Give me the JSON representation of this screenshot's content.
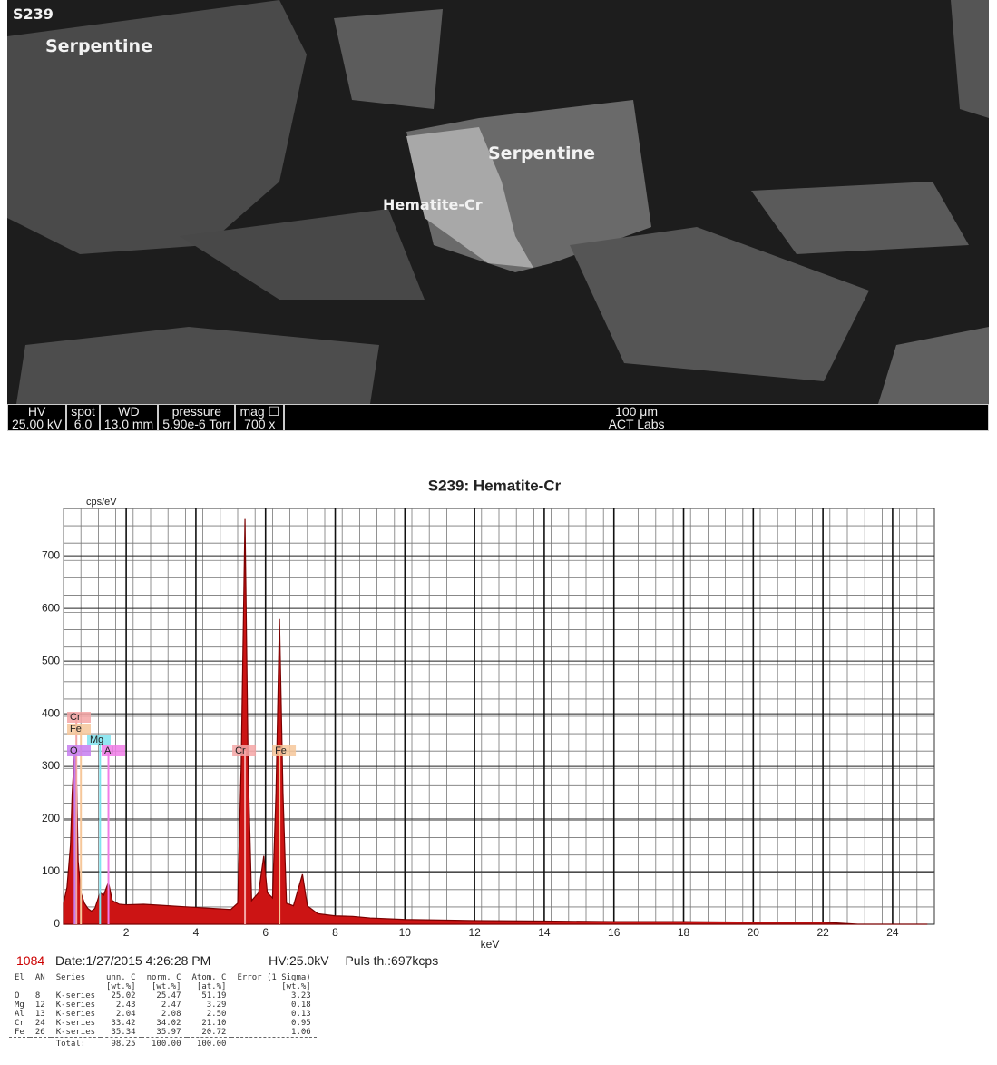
{
  "image": {
    "sample_id": "S239",
    "labels": [
      "Serpentine",
      "Serpentine",
      "Hematite-Cr"
    ],
    "info_bar": [
      {
        "name": "HV",
        "value": "25.00 kV"
      },
      {
        "name": "spot",
        "value": "6.0"
      },
      {
        "name": "WD",
        "value": "13.0 mm"
      },
      {
        "name": "pressure",
        "value": "5.90e-6 Torr"
      },
      {
        "name": "mag ☐",
        "value": "700 x"
      }
    ],
    "scale_bar": "100 μm",
    "lab": "ACT Labs"
  },
  "chart_data": {
    "type": "area",
    "title": "S239: Hematite-Cr",
    "y_label": "cps/eV",
    "x_label": "keV",
    "xlim": [
      0.2,
      25.2
    ],
    "ylim": [
      0,
      790
    ],
    "xticks": [
      2,
      4,
      6,
      8,
      10,
      12,
      14,
      16,
      18,
      20,
      22,
      24
    ],
    "yticks": [
      0,
      100,
      200,
      300,
      400,
      500,
      600,
      700
    ],
    "grid": true,
    "series": [
      {
        "color": "#cc1414",
        "x": [
          0.2,
          0.3,
          0.4,
          0.45,
          0.52,
          0.58,
          0.62,
          0.7,
          0.8,
          0.9,
          1.0,
          1.1,
          1.25,
          1.35,
          1.49,
          1.6,
          1.8,
          2.0,
          2.5,
          3.0,
          3.5,
          4.0,
          4.5,
          5.0,
          5.2,
          5.3,
          5.41,
          5.5,
          5.6,
          5.8,
          5.95,
          6.05,
          6.2,
          6.3,
          6.4,
          6.5,
          6.6,
          6.8,
          7.06,
          7.2,
          7.5,
          8.0,
          8.5,
          9.0,
          10,
          12,
          14,
          16,
          18,
          20,
          22,
          22.5,
          23,
          25
        ],
        "values": [
          40,
          70,
          150,
          250,
          330,
          260,
          120,
          60,
          40,
          30,
          25,
          30,
          60,
          55,
          80,
          45,
          38,
          37,
          38,
          36,
          34,
          32,
          30,
          28,
          40,
          300,
          770,
          300,
          45,
          60,
          130,
          60,
          50,
          250,
          580,
          250,
          40,
          35,
          95,
          35,
          20,
          16,
          15,
          12,
          9,
          7,
          6,
          5,
          5,
          4,
          4,
          2,
          0,
          0
        ]
      }
    ],
    "peak_labels": [
      {
        "label": "Cr",
        "x": 0.57,
        "color": "#f4a6a6"
      },
      {
        "label": "Fe",
        "x": 0.7,
        "color": "#f6c79a"
      },
      {
        "label": "Mg",
        "x": 1.25,
        "color": "#7fe3ee"
      },
      {
        "label": "O",
        "x": 0.52,
        "color": "#c77df0"
      },
      {
        "label": "Al",
        "x": 1.49,
        "color": "#f07de8"
      },
      {
        "label": "Cr",
        "x": 5.41,
        "color": "#f4a6a6"
      },
      {
        "label": "Fe",
        "x": 6.4,
        "color": "#f6c79a"
      }
    ]
  },
  "footer": {
    "spectrum_id": "1084",
    "date": "Date:1/27/2015 4:26:28 PM",
    "hv": "HV:25.0kV",
    "puls": "Puls th.:697kcps"
  },
  "table": {
    "header": [
      "El",
      "AN",
      "Series",
      "unn. C",
      "norm. C",
      "Atom. C",
      "Error (1 Sigma)"
    ],
    "units": [
      "",
      "",
      "",
      "[wt.%]",
      "[wt.%]",
      "[at.%]",
      "[wt.%]"
    ],
    "rows": [
      [
        "O",
        "8",
        "K-series",
        "25.02",
        "25.47",
        "51.19",
        "3.23"
      ],
      [
        "Mg",
        "12",
        "K-series",
        "2.43",
        "2.47",
        "3.29",
        "0.18"
      ],
      [
        "Al",
        "13",
        "K-series",
        "2.04",
        "2.08",
        "2.50",
        "0.13"
      ],
      [
        "Cr",
        "24",
        "K-series",
        "33.42",
        "34.02",
        "21.10",
        "0.95"
      ],
      [
        "Fe",
        "26",
        "K-series",
        "35.34",
        "35.97",
        "20.72",
        "1.06"
      ]
    ],
    "total": [
      "Total:",
      "98.25",
      "100.00",
      "100.00"
    ]
  }
}
